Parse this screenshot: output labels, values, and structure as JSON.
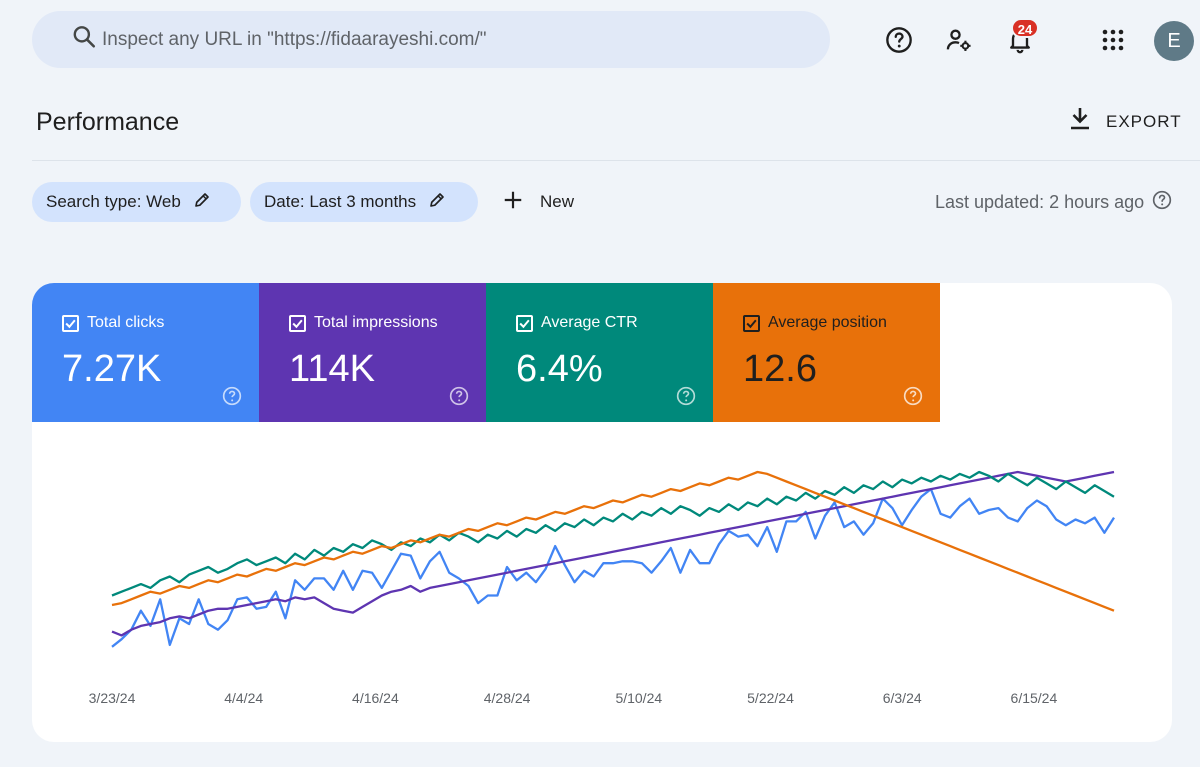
{
  "search": {
    "placeholder": "Inspect any URL in \"https://fidaarayeshi.com/\""
  },
  "header": {
    "notifications_count": "24",
    "avatar_letter": "E"
  },
  "page": {
    "title": "Performance",
    "export_label": "EXPORT"
  },
  "filters": {
    "search_type": "Search type: Web",
    "date": "Date: Last 3 months",
    "new_label": "New",
    "last_updated": "Last updated: 2 hours ago"
  },
  "metrics": [
    {
      "label": "Total clicks",
      "value": "7.27K",
      "color": "#4285f4"
    },
    {
      "label": "Total impressions",
      "value": "114K",
      "color": "#5e35b1"
    },
    {
      "label": "Average CTR",
      "value": "6.4%",
      "color": "#00897b"
    },
    {
      "label": "Average position",
      "value": "12.6",
      "color": "#e8710a"
    }
  ],
  "chart_data": {
    "type": "line",
    "x_ticks": [
      "3/23/24",
      "4/4/24",
      "4/16/24",
      "4/28/24",
      "5/10/24",
      "5/22/24",
      "6/3/24",
      "6/15/24"
    ],
    "y_axis_labels_shown": false,
    "series": [
      {
        "name": "Total clicks",
        "color": "#4285f4",
        "values": [
          0.08,
          0.12,
          0.17,
          0.27,
          0.19,
          0.33,
          0.09,
          0.23,
          0.2,
          0.33,
          0.2,
          0.17,
          0.22,
          0.33,
          0.34,
          0.28,
          0.29,
          0.37,
          0.23,
          0.43,
          0.38,
          0.44,
          0.44,
          0.38,
          0.48,
          0.38,
          0.48,
          0.47,
          0.39,
          0.48,
          0.57,
          0.56,
          0.44,
          0.53,
          0.58,
          0.47,
          0.44,
          0.4,
          0.31,
          0.35,
          0.35,
          0.5,
          0.43,
          0.47,
          0.42,
          0.49,
          0.61,
          0.51,
          0.42,
          0.48,
          0.45,
          0.52,
          0.52,
          0.53,
          0.53,
          0.52,
          0.47,
          0.53,
          0.6,
          0.47,
          0.59,
          0.52,
          0.52,
          0.62,
          0.69,
          0.66,
          0.67,
          0.61,
          0.71,
          0.58,
          0.74,
          0.74,
          0.79,
          0.65,
          0.77,
          0.84,
          0.71,
          0.74,
          0.67,
          0.73,
          0.86,
          0.81,
          0.72,
          0.8,
          0.87,
          0.91,
          0.78,
          0.76,
          0.82,
          0.86,
          0.78,
          0.8,
          0.81,
          0.76,
          0.74,
          0.81,
          0.85,
          0.82,
          0.75,
          0.72,
          0.75,
          0.73,
          0.76,
          0.68,
          0.76
        ]
      },
      {
        "name": "Total impressions",
        "color": "#5e35b1",
        "values": [
          0.16,
          0.14,
          0.17,
          0.19,
          0.2,
          0.21,
          0.23,
          0.24,
          0.23,
          0.25,
          0.27,
          0.28,
          0.28,
          0.29,
          0.3,
          0.31,
          0.32,
          0.33,
          0.32,
          0.34,
          0.33,
          0.34,
          0.31,
          0.28,
          0.27,
          0.26,
          0.29,
          0.32,
          0.35,
          0.37,
          0.38,
          0.4,
          0.37,
          0.39,
          0.4,
          0.41,
          0.42,
          0.43,
          0.44,
          0.45,
          0.46,
          0.47,
          0.48,
          0.49,
          0.5,
          0.51,
          0.52,
          0.53,
          0.54,
          0.55,
          0.56,
          0.57,
          0.58,
          0.59,
          0.6,
          0.61,
          0.62,
          0.63,
          0.64,
          0.65,
          0.66,
          0.67,
          0.68,
          0.69,
          0.7,
          0.71,
          0.72,
          0.73,
          0.74,
          0.75,
          0.76,
          0.77,
          0.78,
          0.79,
          0.8,
          0.81,
          0.82,
          0.83,
          0.84,
          0.85,
          0.86,
          0.87,
          0.88,
          0.89,
          0.9,
          0.91,
          0.92,
          0.93,
          0.94,
          0.95,
          0.96,
          0.97,
          0.98,
          0.99,
          1.0,
          0.99,
          0.98,
          0.97,
          0.96,
          0.95,
          0.96,
          0.97,
          0.98,
          0.99,
          1.0
        ]
      },
      {
        "name": "Average CTR",
        "color": "#00897b",
        "values": [
          0.35,
          0.37,
          0.39,
          0.41,
          0.39,
          0.43,
          0.45,
          0.42,
          0.46,
          0.48,
          0.5,
          0.47,
          0.49,
          0.52,
          0.54,
          0.51,
          0.53,
          0.55,
          0.52,
          0.57,
          0.54,
          0.59,
          0.56,
          0.6,
          0.58,
          0.62,
          0.6,
          0.64,
          0.62,
          0.59,
          0.63,
          0.61,
          0.65,
          0.63,
          0.67,
          0.64,
          0.68,
          0.66,
          0.63,
          0.67,
          0.65,
          0.69,
          0.66,
          0.7,
          0.68,
          0.72,
          0.69,
          0.73,
          0.71,
          0.75,
          0.72,
          0.76,
          0.74,
          0.78,
          0.75,
          0.79,
          0.77,
          0.81,
          0.78,
          0.82,
          0.8,
          0.77,
          0.81,
          0.79,
          0.83,
          0.8,
          0.84,
          0.82,
          0.86,
          0.83,
          0.87,
          0.85,
          0.89,
          0.86,
          0.9,
          0.88,
          0.92,
          0.89,
          0.93,
          0.91,
          0.95,
          0.92,
          0.96,
          0.94,
          0.97,
          0.95,
          0.98,
          0.96,
          0.99,
          0.97,
          1.0,
          0.98,
          0.95,
          0.99,
          0.96,
          0.93,
          0.97,
          0.94,
          0.91,
          0.95,
          0.92,
          0.89,
          0.93,
          0.9,
          0.87
        ]
      },
      {
        "name": "Average position",
        "color": "#e8710a",
        "values": [
          0.3,
          0.31,
          0.33,
          0.35,
          0.37,
          0.36,
          0.38,
          0.4,
          0.39,
          0.41,
          0.43,
          0.42,
          0.44,
          0.46,
          0.45,
          0.47,
          0.49,
          0.48,
          0.5,
          0.52,
          0.51,
          0.53,
          0.55,
          0.54,
          0.56,
          0.58,
          0.57,
          0.59,
          0.61,
          0.6,
          0.62,
          0.64,
          0.63,
          0.65,
          0.67,
          0.66,
          0.68,
          0.7,
          0.69,
          0.71,
          0.73,
          0.72,
          0.74,
          0.76,
          0.75,
          0.77,
          0.79,
          0.78,
          0.8,
          0.82,
          0.81,
          0.83,
          0.85,
          0.84,
          0.86,
          0.88,
          0.87,
          0.89,
          0.91,
          0.9,
          0.92,
          0.94,
          0.93,
          0.95,
          0.97,
          0.96,
          0.98,
          1.0,
          0.99,
          0.97,
          0.95,
          0.93,
          0.91,
          0.89,
          0.87,
          0.85,
          0.83,
          0.81,
          0.79,
          0.77,
          0.75,
          0.73,
          0.71,
          0.69,
          0.67,
          0.65,
          0.63,
          0.61,
          0.59,
          0.57,
          0.55,
          0.53,
          0.51,
          0.49,
          0.47,
          0.45,
          0.43,
          0.41,
          0.39,
          0.37,
          0.35,
          0.33,
          0.31,
          0.29,
          0.27
        ]
      }
    ]
  }
}
